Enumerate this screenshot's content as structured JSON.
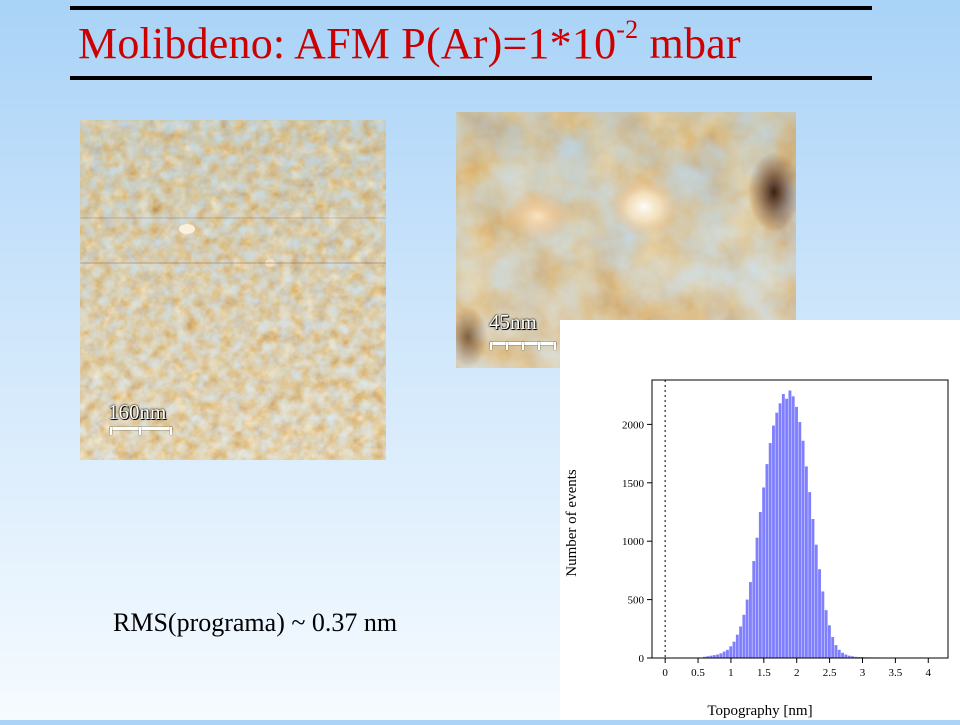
{
  "slide": {
    "title_main": "Molibdeno:  AFM P(Ar)=1*10",
    "title_exponent": "-2",
    "title_unit": " mbar",
    "rms_text": "RMS(programa) ~ 0.37 nm"
  },
  "images": {
    "left": {
      "scale_label": "160nm"
    },
    "right": {
      "scale_label": "45nm"
    }
  },
  "colors": {
    "title": "#cc0000",
    "afm_dark": "#6b2a05",
    "afm_mid": "#c8661c",
    "afm_light": "#ffe6b8",
    "histogram_bars": "#8080ff"
  },
  "chart_data": {
    "type": "bar",
    "xlabel": "Topography [nm]",
    "ylabel": "Number of events",
    "xlim": [
      -0.2,
      4.3
    ],
    "ylim": [
      0,
      2380
    ],
    "xticks": [
      "0",
      "0.5",
      "1",
      "1.5",
      "2",
      "2.5",
      "3",
      "3.5",
      "4"
    ],
    "yticks": [
      "0",
      "500",
      "1000",
      "1500",
      "2000"
    ],
    "bin_width": 0.05,
    "x": [
      0.6,
      0.65,
      0.7,
      0.75,
      0.8,
      0.85,
      0.9,
      0.95,
      1.0,
      1.05,
      1.1,
      1.15,
      1.2,
      1.25,
      1.3,
      1.35,
      1.4,
      1.45,
      1.5,
      1.55,
      1.6,
      1.65,
      1.7,
      1.75,
      1.8,
      1.85,
      1.9,
      1.95,
      2.0,
      2.05,
      2.1,
      2.15,
      2.2,
      2.25,
      2.3,
      2.35,
      2.4,
      2.45,
      2.5,
      2.55,
      2.6,
      2.65,
      2.7,
      2.75,
      2.8,
      2.85,
      2.9,
      2.95,
      3.0,
      3.05,
      3.1,
      3.15,
      3.2,
      3.25,
      3.3,
      3.35,
      3.4,
      3.45,
      3.5
    ],
    "values": [
      10,
      15,
      20,
      25,
      30,
      40,
      55,
      70,
      100,
      140,
      200,
      270,
      370,
      500,
      650,
      830,
      1030,
      1250,
      1460,
      1660,
      1840,
      1990,
      2100,
      2180,
      2260,
      2220,
      2290,
      2240,
      2150,
      2020,
      1860,
      1640,
      1420,
      1190,
      970,
      760,
      570,
      410,
      280,
      180,
      110,
      70,
      45,
      30,
      20,
      15,
      10,
      8,
      8,
      6,
      6,
      5,
      5,
      5,
      4,
      4,
      3,
      3,
      2
    ]
  }
}
